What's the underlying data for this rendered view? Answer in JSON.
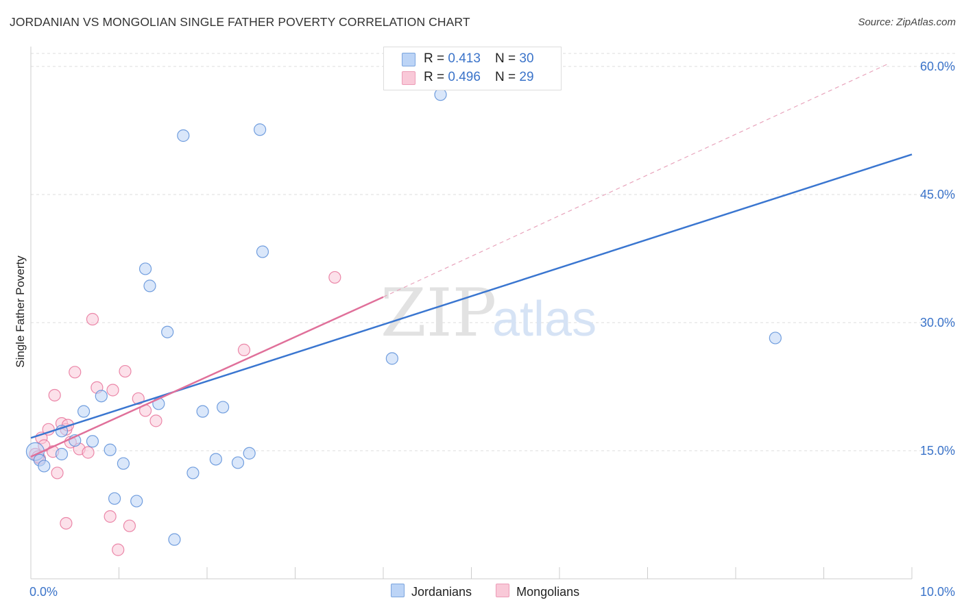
{
  "title": "JORDANIAN VS MONGOLIAN SINGLE FATHER POVERTY CORRELATION CHART",
  "source": "Source: ZipAtlas.com",
  "colors": {
    "jordanians": "#5b8ed8",
    "jordanians_fill": "#bcd4f6",
    "mongolians": "#e7739a",
    "mongolians_fill": "#f9c9d8",
    "axis_label": "#3a73c9",
    "grid": "#dddddd"
  },
  "legend_top": {
    "rows": [
      {
        "r_label": "R = ",
        "r_value": "0.413",
        "n_label": "N = ",
        "n_value": "30"
      },
      {
        "r_label": "R = ",
        "r_value": "0.496",
        "n_label": "N = ",
        "n_value": "29"
      }
    ]
  },
  "legend_bottom": {
    "jordanians": "Jordanians",
    "mongolians": "Mongolians"
  },
  "watermark": {
    "zip": "ZIP",
    "atlas": "atlas"
  },
  "chart_data": {
    "type": "scatter",
    "title": "JORDANIAN VS MONGOLIAN SINGLE FATHER POVERTY CORRELATION CHART",
    "xlabel": "",
    "ylabel": "Single Father Poverty",
    "xlim": [
      0,
      10
    ],
    "ylim": [
      0,
      60
    ],
    "x_tick_labels": [
      "0.0%",
      "10.0%"
    ],
    "y_tick_labels": [
      "15.0%",
      "30.0%",
      "45.0%",
      "60.0%"
    ],
    "y_ticks": [
      15,
      30,
      45,
      60
    ],
    "series": [
      {
        "name": "Jordanians",
        "r": 0.413,
        "n": 30,
        "points": [
          {
            "x": 0.05,
            "y": 14.9
          },
          {
            "x": 0.1,
            "y": 13.9
          },
          {
            "x": 0.15,
            "y": 13.2
          },
          {
            "x": 0.35,
            "y": 14.6
          },
          {
            "x": 0.35,
            "y": 17.3
          },
          {
            "x": 0.5,
            "y": 16.2
          },
          {
            "x": 0.6,
            "y": 19.6
          },
          {
            "x": 0.7,
            "y": 16.1
          },
          {
            "x": 0.8,
            "y": 21.4
          },
          {
            "x": 0.9,
            "y": 15.1
          },
          {
            "x": 0.95,
            "y": 9.4
          },
          {
            "x": 1.05,
            "y": 13.5
          },
          {
            "x": 1.2,
            "y": 9.1
          },
          {
            "x": 1.3,
            "y": 36.3
          },
          {
            "x": 1.35,
            "y": 34.3
          },
          {
            "x": 1.45,
            "y": 20.5
          },
          {
            "x": 1.55,
            "y": 28.9
          },
          {
            "x": 1.63,
            "y": 4.6
          },
          {
            "x": 1.73,
            "y": 51.9
          },
          {
            "x": 1.84,
            "y": 12.4
          },
          {
            "x": 1.95,
            "y": 19.6
          },
          {
            "x": 2.1,
            "y": 14.0
          },
          {
            "x": 2.18,
            "y": 20.1
          },
          {
            "x": 2.35,
            "y": 13.6
          },
          {
            "x": 2.48,
            "y": 14.7
          },
          {
            "x": 2.6,
            "y": 52.6
          },
          {
            "x": 2.63,
            "y": 38.3
          },
          {
            "x": 4.1,
            "y": 25.8
          },
          {
            "x": 4.65,
            "y": 56.7
          },
          {
            "x": 8.45,
            "y": 28.2
          }
        ],
        "trend": {
          "x_start": 0,
          "y_start": 16.5,
          "x_end": 10,
          "y_end": 49.7
        }
      },
      {
        "name": "Mongolians",
        "r": 0.496,
        "n": 29,
        "points": [
          {
            "x": 0.05,
            "y": 14.6
          },
          {
            "x": 0.1,
            "y": 14.1
          },
          {
            "x": 0.12,
            "y": 16.5
          },
          {
            "x": 0.15,
            "y": 15.6
          },
          {
            "x": 0.2,
            "y": 17.5
          },
          {
            "x": 0.25,
            "y": 14.9
          },
          {
            "x": 0.27,
            "y": 21.5
          },
          {
            "x": 0.3,
            "y": 12.4
          },
          {
            "x": 0.35,
            "y": 18.2
          },
          {
            "x": 0.4,
            "y": 17.5
          },
          {
            "x": 0.4,
            "y": 6.5
          },
          {
            "x": 0.42,
            "y": 18.0
          },
          {
            "x": 0.45,
            "y": 16.0
          },
          {
            "x": 0.5,
            "y": 24.2
          },
          {
            "x": 0.55,
            "y": 15.2
          },
          {
            "x": 0.65,
            "y": 14.8
          },
          {
            "x": 0.7,
            "y": 30.4
          },
          {
            "x": 0.75,
            "y": 22.4
          },
          {
            "x": 0.9,
            "y": 7.3
          },
          {
            "x": 0.93,
            "y": 22.1
          },
          {
            "x": 0.99,
            "y": 3.4
          },
          {
            "x": 1.07,
            "y": 24.3
          },
          {
            "x": 1.12,
            "y": 6.2
          },
          {
            "x": 1.22,
            "y": 21.1
          },
          {
            "x": 1.3,
            "y": 19.7
          },
          {
            "x": 1.42,
            "y": 18.5
          },
          {
            "x": 2.42,
            "y": 26.8
          },
          {
            "x": 3.45,
            "y": 35.3
          },
          {
            "x": 0.08,
            "y": 14.3
          }
        ],
        "trend": {
          "x_start": 0,
          "y_start": 14.3,
          "x_end": 4.0,
          "y_end": 33.0
        },
        "trend_extension": {
          "x_start": 4.0,
          "y_start": 33.0,
          "x_end": 9.75,
          "y_end": 60.4
        }
      }
    ]
  }
}
